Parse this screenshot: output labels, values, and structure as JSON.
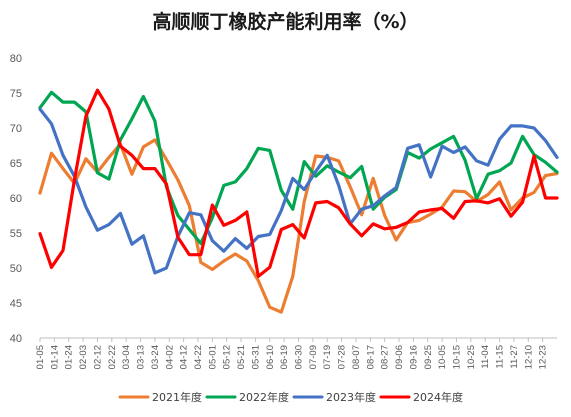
{
  "chart_data": {
    "type": "line",
    "title": "高顺顺丁橡胶产能利用率（%）",
    "ylim": [
      40,
      80
    ],
    "yticks": [
      40,
      45,
      50,
      55,
      60,
      65,
      70,
      75,
      80
    ],
    "grid": false,
    "legend_position": "bottom",
    "categories": [
      "01-05",
      "01-14",
      "01-24",
      "02-03",
      "02-12",
      "02-22",
      "03-04",
      "03-13",
      "03-24",
      "04-02",
      "04-12",
      "04-22",
      "05-01",
      "05-12",
      "05-21",
      "05-31",
      "06-10",
      "06-19",
      "06-30",
      "07-09",
      "07-19",
      "07-28",
      "08-07",
      "08-17",
      "08-27",
      "09-06",
      "09-16",
      "09-25",
      "10-05",
      "10-15",
      "10-25",
      "11-04",
      "11-15",
      "11-27",
      "12-10",
      "12-23"
    ],
    "x": [
      0,
      0.8,
      1.6,
      2.4,
      3.2,
      4,
      4.8,
      5.6,
      6.4,
      7.2,
      8,
      8.8,
      9.6,
      10.4,
      11.2,
      12,
      12.8,
      13.6,
      14.4,
      15.2,
      16,
      16.8,
      17.6,
      18.4,
      19.2,
      20,
      20.8,
      21.6,
      22.4,
      23.2,
      24,
      24.8,
      25.6,
      26.4,
      27.2,
      28,
      28.8,
      29.6,
      30.4,
      31.2,
      32,
      32.8,
      33.6,
      34.4,
      35.2,
      36
    ],
    "series": [
      {
        "name": "2021年度",
        "color": "#ed7d31",
        "values": [
          60.7,
          66.4,
          64.2,
          62.1,
          65.6,
          63.7,
          65.8,
          67.7,
          63.4,
          67.3,
          68.3,
          65.5,
          62.6,
          58.9,
          50.8,
          49.8,
          51,
          52,
          51,
          48.2,
          44.4,
          43.7,
          48.8,
          59.5,
          66,
          65.8,
          65.3,
          61.6,
          57.6,
          62.8,
          57.5,
          54,
          56.5,
          56.8,
          57.7,
          58.7,
          61,
          60.9,
          59.5,
          60.5,
          62.3,
          58.3,
          60,
          60.8,
          63.2,
          63.5
        ]
      },
      {
        "name": "2022年度",
        "color": "#00a651",
        "values": [
          72.9,
          75.1,
          73.7,
          73.7,
          72.3,
          63.6,
          62.7,
          68.3,
          71.3,
          74.5,
          71,
          61.6,
          57.5,
          55.5,
          53.5,
          57.2,
          61.8,
          62.3,
          64.2,
          67.1,
          66.8,
          61.1,
          58.4,
          65.2,
          63.1,
          64.6,
          63.7,
          62.9,
          64.5,
          58.4,
          60.1,
          61.2,
          66.5,
          65.7,
          67,
          67.9,
          68.8,
          65.4,
          59.9,
          63.4,
          63.9,
          65,
          68.8,
          66.2,
          65.1,
          63.7
        ]
      },
      {
        "name": "2023年度",
        "color": "#4472c4",
        "values": [
          72.7,
          70.6,
          66.1,
          63.1,
          58.7,
          55.4,
          56.2,
          57.8,
          53.4,
          54.6,
          49.3,
          50,
          54.5,
          57.9,
          57.6,
          53.9,
          52.4,
          54.2,
          52.8,
          54.5,
          54.8,
          58.2,
          62.8,
          61.2,
          63.8,
          66.1,
          61.8,
          56.3,
          58.4,
          58.9,
          60.3,
          61.5,
          67.1,
          67.6,
          63,
          67.4,
          66.5,
          67.3,
          65.3,
          64.7,
          68.4,
          70.3,
          70.3,
          70,
          68.2,
          65.8
        ]
      },
      {
        "name": "2024年度",
        "color": "#ff0000",
        "values": [
          54.9,
          50.1,
          52.5,
          62.6,
          71.7,
          75.4,
          72.7,
          67.4,
          66.1,
          64.2,
          64.2,
          62,
          54.4,
          51.9,
          51.9,
          59,
          56.1,
          56.8,
          58,
          48.8,
          50.1,
          55.5,
          56.2,
          54.3,
          59.3,
          59.5,
          58.6,
          56.3,
          54.6,
          56.3,
          55.6,
          55.8,
          56.5,
          58,
          58.3,
          58.5,
          57.1,
          59.5,
          59.6,
          59.3,
          59.9,
          57.4,
          59.4,
          66,
          60,
          60
        ]
      }
    ]
  }
}
